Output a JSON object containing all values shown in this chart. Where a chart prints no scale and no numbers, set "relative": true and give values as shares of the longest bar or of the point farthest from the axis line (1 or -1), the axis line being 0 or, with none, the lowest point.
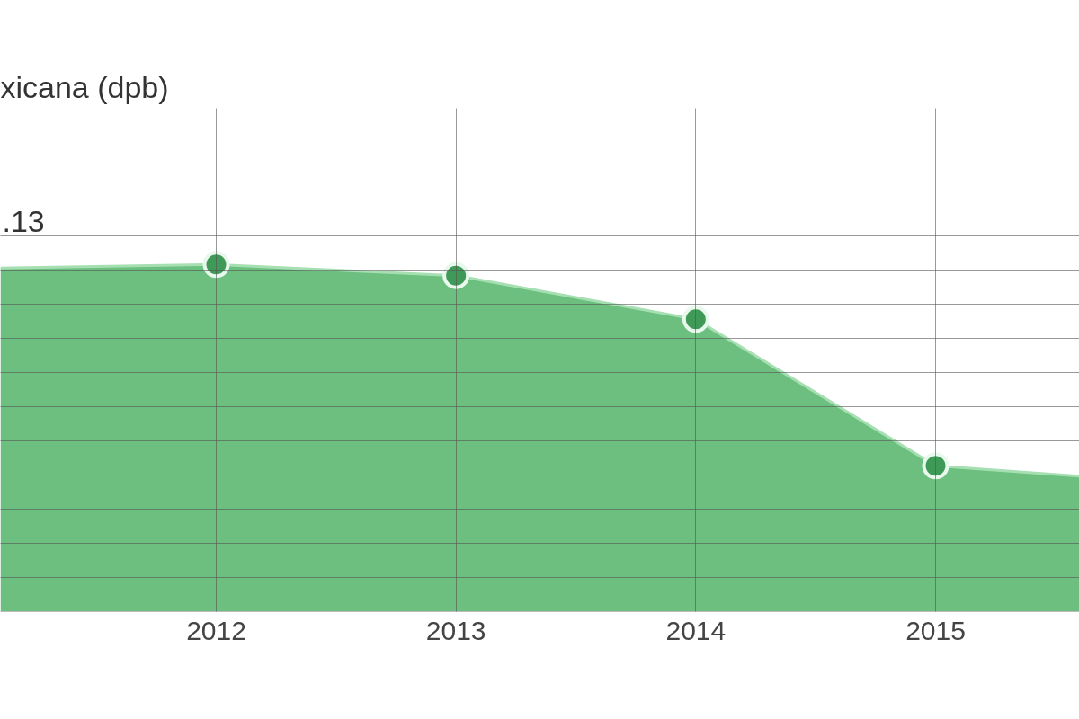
{
  "chart_data": {
    "type": "area",
    "title": "xicana (dpb)",
    "relative": true,
    "x": [
      2011.1,
      2012,
      2013,
      2014,
      2015,
      2015.6
    ],
    "xlim": [
      2011.1,
      2015.6
    ],
    "xticks": [
      2012,
      2013,
      2014,
      2015
    ],
    "grid": true,
    "annotations": [
      ".13"
    ],
    "series": [
      {
        "color": "#6cbf7e",
        "values": [
          0.99,
          1,
          0.968,
          0.842,
          0.42,
          0.39
        ]
      },
      {
        "type": "scatter",
        "color": "#3f9a57",
        "marker": "circle",
        "x": [
          2012,
          2013,
          2014,
          2015
        ],
        "values": [
          1,
          0.968,
          0.842,
          0.42
        ]
      }
    ]
  }
}
